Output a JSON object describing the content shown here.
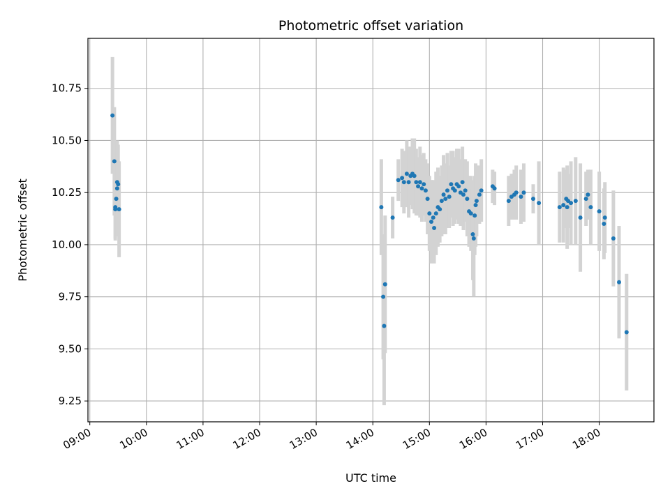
{
  "chart_data": {
    "type": "scatter",
    "title": "Photometric offset variation",
    "xlabel": "UTC time",
    "ylabel": "Photometric offset",
    "x_unit": "UTC hours",
    "xlim": [
      "08:58",
      "18:58"
    ],
    "ylim": [
      9.15,
      10.99
    ],
    "x_ticks": [
      "09:00",
      "10:00",
      "11:00",
      "12:00",
      "13:00",
      "14:00",
      "15:00",
      "16:00",
      "17:00",
      "18:00"
    ],
    "y_ticks": [
      "9.25",
      "9.50",
      "9.75",
      "10.00",
      "10.25",
      "10.50",
      "10.75"
    ],
    "grid": true,
    "colors": {
      "marker": "#1f77b4",
      "errorbar": "#d3d3d3",
      "grid": "#b0b0b0"
    },
    "series": [
      {
        "points": [
          [
            "09:24",
            10.62,
            0.28
          ],
          [
            "09:26",
            10.4,
            0.26
          ],
          [
            "09:27",
            10.18,
            0.16
          ],
          [
            "09:27",
            10.17,
            0.14
          ],
          [
            "09:28",
            10.22,
            0.15
          ],
          [
            "09:29",
            10.27,
            0.23
          ],
          [
            "09:29",
            10.3,
            0.2
          ],
          [
            "09:30",
            10.29,
            0.19
          ],
          [
            "09:31",
            10.17,
            0.23
          ],
          [
            "14:09",
            10.18,
            0.23
          ],
          [
            "14:11",
            9.75,
            0.3
          ],
          [
            "14:12",
            9.61,
            0.38
          ],
          [
            "14:13",
            9.81,
            0.33
          ],
          [
            "14:21",
            10.13,
            0.1
          ],
          [
            "14:27",
            10.31,
            0.1
          ],
          [
            "14:31",
            10.32,
            0.14
          ],
          [
            "14:33",
            10.3,
            0.15
          ],
          [
            "14:36",
            10.34,
            0.16
          ],
          [
            "14:38",
            10.3,
            0.17
          ],
          [
            "14:40",
            10.33,
            0.14
          ],
          [
            "14:42",
            10.34,
            0.17
          ],
          [
            "14:44",
            10.33,
            0.18
          ],
          [
            "14:46",
            10.3,
            0.16
          ],
          [
            "14:48",
            10.28,
            0.14
          ],
          [
            "14:50",
            10.3,
            0.17
          ],
          [
            "14:52",
            10.27,
            0.16
          ],
          [
            "14:54",
            10.29,
            0.15
          ],
          [
            "14:56",
            10.26,
            0.15
          ],
          [
            "14:58",
            10.22,
            0.17
          ],
          [
            "15:00",
            10.15,
            0.18
          ],
          [
            "15:02",
            10.11,
            0.2
          ],
          [
            "15:04",
            10.13,
            0.18
          ],
          [
            "15:05",
            10.08,
            0.17
          ],
          [
            "15:07",
            10.15,
            0.2
          ],
          [
            "15:09",
            10.18,
            0.19
          ],
          [
            "15:11",
            10.17,
            0.16
          ],
          [
            "15:13",
            10.21,
            0.17
          ],
          [
            "15:15",
            10.24,
            0.19
          ],
          [
            "15:17",
            10.22,
            0.17
          ],
          [
            "15:19",
            10.26,
            0.18
          ],
          [
            "15:21",
            10.23,
            0.15
          ],
          [
            "15:23",
            10.29,
            0.16
          ],
          [
            "15:25",
            10.27,
            0.18
          ],
          [
            "15:27",
            10.26,
            0.16
          ],
          [
            "15:29",
            10.29,
            0.17
          ],
          [
            "15:31",
            10.28,
            0.18
          ],
          [
            "15:33",
            10.25,
            0.16
          ],
          [
            "15:35",
            10.3,
            0.17
          ],
          [
            "15:36",
            10.24,
            0.17
          ],
          [
            "15:38",
            10.26,
            0.15
          ],
          [
            "15:40",
            10.22,
            0.18
          ],
          [
            "15:42",
            10.16,
            0.17
          ],
          [
            "15:44",
            10.15,
            0.18
          ],
          [
            "15:46",
            10.05,
            0.22
          ],
          [
            "15:47",
            10.03,
            0.28
          ],
          [
            "15:48",
            10.14,
            0.19
          ],
          [
            "15:49",
            10.19,
            0.2
          ],
          [
            "15:50",
            10.21,
            0.17
          ],
          [
            "15:53",
            10.24,
            0.14
          ],
          [
            "15:55",
            10.26,
            0.15
          ],
          [
            "16:07",
            10.28,
            0.08
          ],
          [
            "16:09",
            10.27,
            0.08
          ],
          [
            "16:24",
            10.21,
            0.12
          ],
          [
            "16:27",
            10.23,
            0.11
          ],
          [
            "16:30",
            10.24,
            0.12
          ],
          [
            "16:32",
            10.25,
            0.13
          ],
          [
            "16:37",
            10.23,
            0.13
          ],
          [
            "16:40",
            10.25,
            0.14
          ],
          [
            "16:50",
            10.22,
            0.07
          ],
          [
            "16:56",
            10.2,
            0.2
          ],
          [
            "17:18",
            10.18,
            0.17
          ],
          [
            "17:22",
            10.19,
            0.18
          ],
          [
            "17:25",
            10.22,
            0.14
          ],
          [
            "17:26",
            10.18,
            0.2
          ],
          [
            "17:27",
            10.21,
            0.13
          ],
          [
            "17:30",
            10.2,
            0.2
          ],
          [
            "17:35",
            10.21,
            0.21
          ],
          [
            "17:40",
            10.13,
            0.26
          ],
          [
            "17:46",
            10.22,
            0.13
          ],
          [
            "17:48",
            10.24,
            0.12
          ],
          [
            "17:51",
            10.18,
            0.18
          ],
          [
            "18:00",
            10.16,
            0.19
          ],
          [
            "18:05",
            10.1,
            0.17
          ],
          [
            "18:06",
            10.13,
            0.17
          ],
          [
            "18:15",
            10.03,
            0.23
          ],
          [
            "18:21",
            9.82,
            0.27
          ],
          [
            "18:29",
            9.58,
            0.28
          ]
        ]
      }
    ]
  }
}
